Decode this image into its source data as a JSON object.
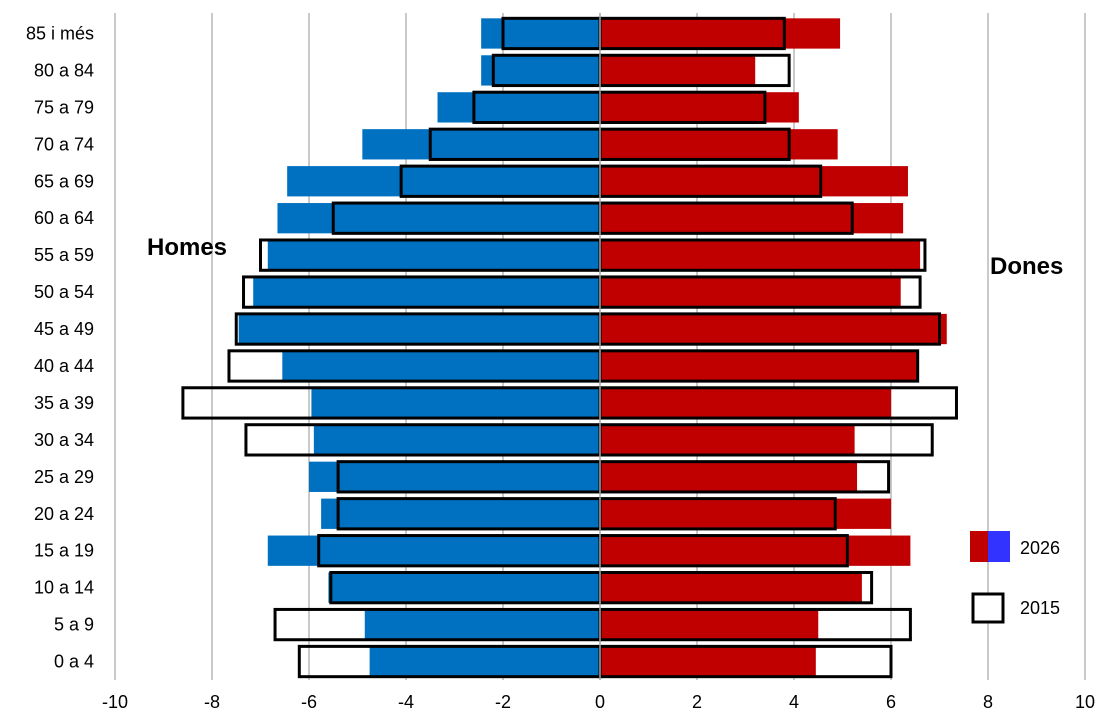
{
  "chart_data": {
    "type": "bar",
    "orientation": "horizontal-pyramid",
    "categories": [
      "0 a 4",
      "5 a 9",
      "10 a 14",
      "15 a 19",
      "20 a 24",
      "25 a 29",
      "30 a 34",
      "35 a 39",
      "40 a 44",
      "45 a 49",
      "50 a 54",
      "55 a 59",
      "60 a 64",
      "65 a 69",
      "70 a 74",
      "75 a 79",
      "80 a 84",
      "85 i més"
    ],
    "x_ticks": [
      "-10",
      "-8",
      "-6",
      "-4",
      "-2",
      "0",
      "2",
      "4",
      "6",
      "8",
      "10"
    ],
    "xlim": [
      -10,
      10
    ],
    "grid": "vertical",
    "side_labels": {
      "left": "Homes",
      "right": "Dones"
    },
    "legend": {
      "placement": "bottom-right",
      "items": [
        {
          "label": "2026",
          "style": "filled"
        },
        {
          "label": "2015",
          "style": "outline"
        }
      ]
    },
    "series": [
      {
        "name": "2026",
        "style": "filled",
        "men": [
          -4.75,
          -4.85,
          -5.6,
          -6.85,
          -5.75,
          -6.0,
          -5.9,
          -5.95,
          -6.55,
          -7.45,
          -7.15,
          -6.85,
          -6.65,
          -6.45,
          -4.9,
          -3.35,
          -2.45,
          -2.45
        ],
        "women": [
          4.45,
          4.5,
          5.4,
          6.4,
          6.0,
          5.3,
          5.25,
          6.0,
          6.55,
          7.15,
          6.2,
          6.6,
          6.25,
          6.35,
          4.9,
          4.1,
          3.2,
          4.95
        ]
      },
      {
        "name": "2015",
        "style": "outline",
        "men": [
          -6.2,
          -6.7,
          -5.55,
          -5.8,
          -5.4,
          -5.4,
          -7.3,
          -8.6,
          -7.65,
          -7.5,
          -7.35,
          -7.0,
          -5.5,
          -4.1,
          -3.5,
          -2.6,
          -2.2,
          -2.0
        ],
        "women": [
          6.0,
          6.4,
          5.6,
          5.1,
          4.85,
          5.95,
          6.85,
          7.35,
          6.55,
          7.0,
          6.6,
          6.7,
          5.2,
          4.55,
          3.9,
          3.4,
          3.9,
          3.8
        ]
      }
    ],
    "colors": {
      "men": "#0070c0",
      "women": "#c00000",
      "legend_blue": "#3333ff",
      "outline": "#000000",
      "grid": "#a6a6a6"
    }
  }
}
